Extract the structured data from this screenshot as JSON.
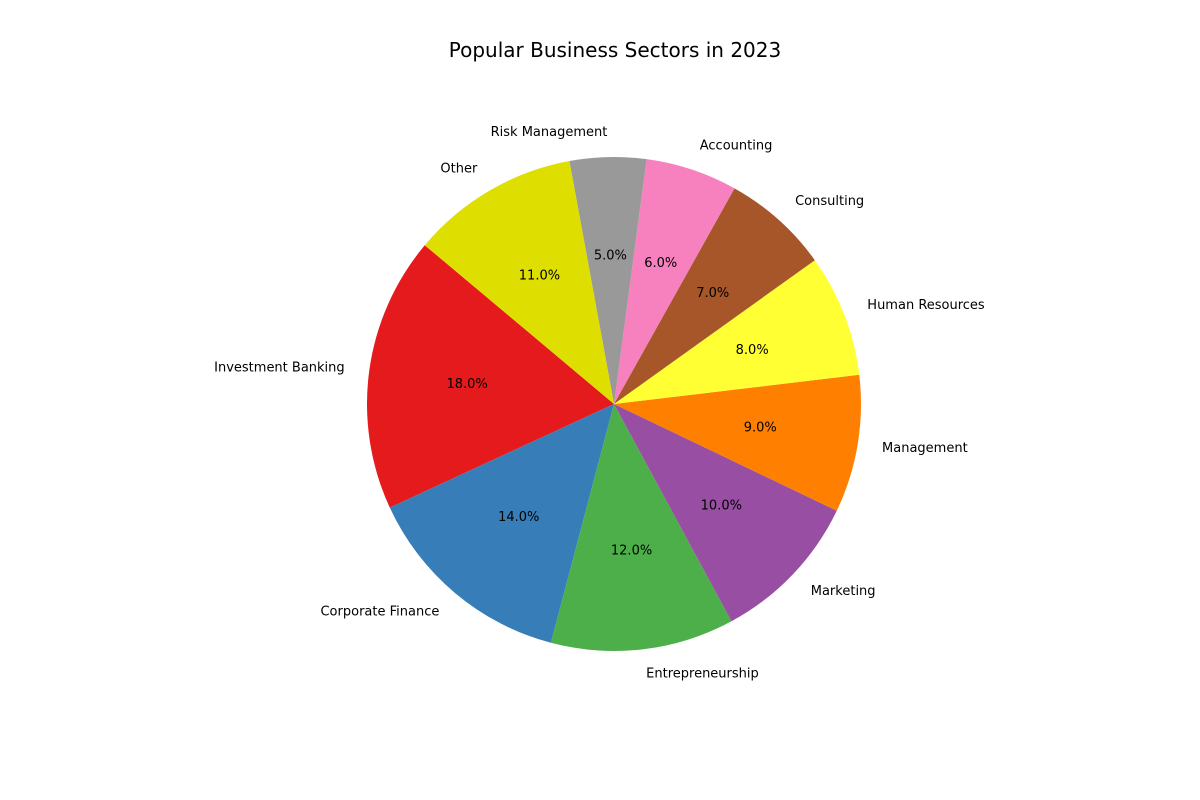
{
  "chart_data": {
    "type": "pie",
    "title": "Popular Business Sectors in 2023",
    "start_angle_deg": 140,
    "direction": "counterclockwise",
    "slices": [
      {
        "label": "Investment Banking",
        "value": 18,
        "pct_label": "18.0%",
        "color": "#e41a1c"
      },
      {
        "label": "Corporate Finance",
        "value": 14,
        "pct_label": "14.0%",
        "color": "#377eb8"
      },
      {
        "label": "Entrepreneurship",
        "value": 12,
        "pct_label": "12.0%",
        "color": "#4daf4a"
      },
      {
        "label": "Marketing",
        "value": 10,
        "pct_label": "10.0%",
        "color": "#984ea3"
      },
      {
        "label": "Management",
        "value": 9,
        "pct_label": "9.0%",
        "color": "#ff7f00"
      },
      {
        "label": "Human Resources",
        "value": 8,
        "pct_label": "8.0%",
        "color": "#ffff33"
      },
      {
        "label": "Consulting",
        "value": 7,
        "pct_label": "7.0%",
        "color": "#a65628"
      },
      {
        "label": "Accounting",
        "value": 6,
        "pct_label": "6.0%",
        "color": "#f781bf"
      },
      {
        "label": "Risk Management",
        "value": 5,
        "pct_label": "5.0%",
        "color": "#999999"
      },
      {
        "label": "Other",
        "value": 11,
        "pct_label": "11.0%",
        "color": "#dede00"
      }
    ]
  }
}
